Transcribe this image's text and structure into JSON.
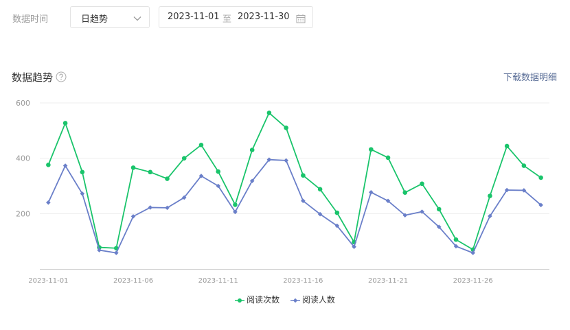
{
  "filters": {
    "time_label": "数据时间",
    "granularity": "日趋势",
    "start_date": "2023-11-01",
    "range_sep": "至",
    "end_date": "2023-11-30"
  },
  "section": {
    "title": "数据趋势",
    "download_label": "下载数据明细"
  },
  "colors": {
    "series1": "#1ac46b",
    "series2": "#6a7fc9",
    "grid": "#eeeeee",
    "axis": "#999999"
  },
  "chart_data": {
    "type": "line",
    "ylim": [
      0,
      600
    ],
    "yticks": [
      200,
      400,
      600
    ],
    "x": [
      "2023-11-01",
      "2023-11-02",
      "2023-11-03",
      "2023-11-04",
      "2023-11-05",
      "2023-11-06",
      "2023-11-07",
      "2023-11-08",
      "2023-11-09",
      "2023-11-10",
      "2023-11-11",
      "2023-11-12",
      "2023-11-13",
      "2023-11-14",
      "2023-11-15",
      "2023-11-16",
      "2023-11-17",
      "2023-11-18",
      "2023-11-19",
      "2023-11-20",
      "2023-11-21",
      "2023-11-22",
      "2023-11-23",
      "2023-11-24",
      "2023-11-25",
      "2023-11-26",
      "2023-11-27",
      "2023-11-28",
      "2023-11-29",
      "2023-11-30"
    ],
    "xtick_labels": [
      "2023-11-01",
      "2023-11-06",
      "2023-11-11",
      "2023-11-16",
      "2023-11-21",
      "2023-11-26"
    ],
    "series": [
      {
        "name": "阅读次数",
        "values": [
          376,
          527,
          350,
          78,
          75,
          366,
          350,
          326,
          400,
          448,
          352,
          232,
          430,
          564,
          510,
          338,
          288,
          203,
          97,
          432,
          402,
          276,
          308,
          216,
          106,
          70,
          264,
          444,
          373,
          330
        ]
      },
      {
        "name": "阅读人数",
        "values": [
          240,
          373,
          272,
          68,
          58,
          190,
          222,
          221,
          258,
          336,
          300,
          206,
          318,
          395,
          392,
          246,
          198,
          156,
          80,
          277,
          246,
          194,
          207,
          152,
          82,
          58,
          191,
          285,
          284,
          231
        ]
      }
    ],
    "legend_position": "bottom"
  }
}
